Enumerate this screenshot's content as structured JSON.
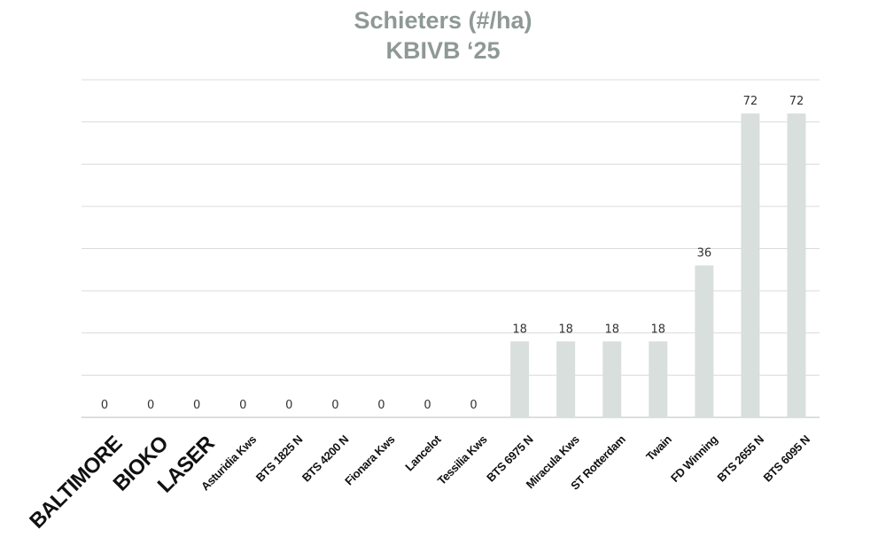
{
  "chart_data": {
    "type": "bar",
    "title": "Schieters (#/ha)",
    "subtitle": "KBIVB ‘25",
    "xlabel": "",
    "ylabel": "",
    "ylim": [
      0,
      80
    ],
    "grid": true,
    "categories": [
      "BALTIMORE",
      "BIOKO",
      "LASER",
      "Asturidia Kws",
      "BTS 1825 N",
      "BTS 4200 N",
      "Fionara Kws",
      "Lancelot",
      "Tessilia Kws",
      "BTS 6975 N",
      "Miracula Kws",
      "ST Rotterdam",
      "Twain",
      "FD Winning",
      "BTS 2655 N",
      "BTS 6095 N"
    ],
    "values": [
      0,
      0,
      0,
      0,
      0,
      0,
      0,
      0,
      0,
      18,
      18,
      18,
      18,
      36,
      72,
      72
    ],
    "value_labels": [
      "0",
      "0",
      "0",
      "0",
      "0",
      "0",
      "0",
      "0",
      "0",
      "18",
      "18",
      "18",
      "18",
      "36",
      "72",
      "72"
    ],
    "highlighted_categories": [
      "BALTIMORE",
      "BIOKO",
      "LASER"
    ],
    "colors": {
      "title": "#8e9996",
      "bar": "#d9dfdd",
      "grid": "#d9dcdc",
      "highlight_label": "#235a8c",
      "label": "#111111",
      "value_label": "#333333"
    }
  }
}
